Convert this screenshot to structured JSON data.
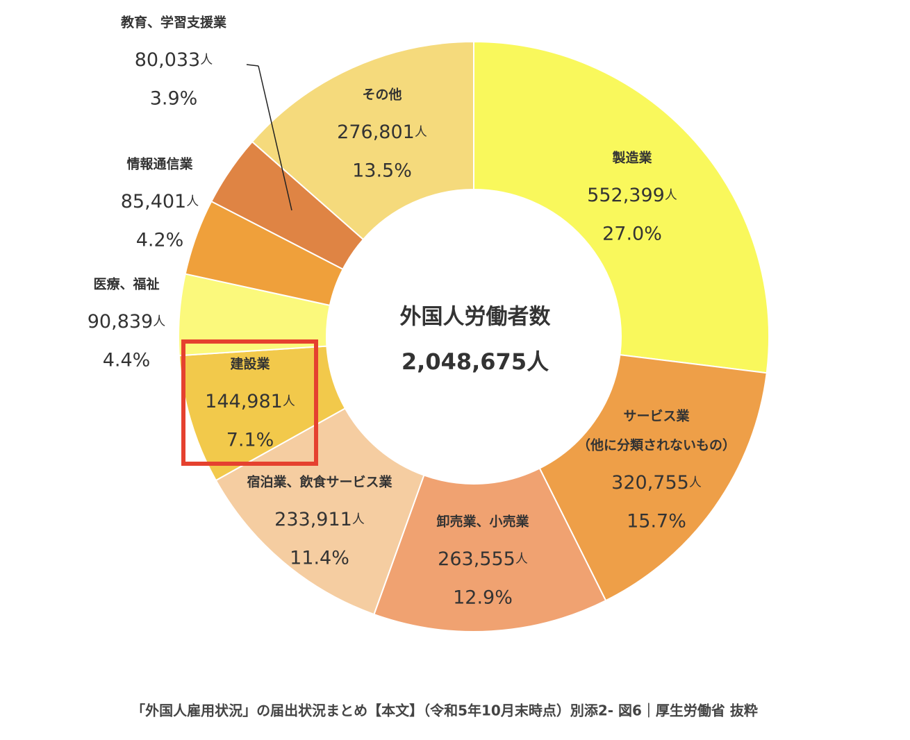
{
  "chart_data": {
    "type": "donut",
    "categories": [
      [
        "製造業"
      ],
      [
        "サービス業",
        "（他に分類されないもの）"
      ],
      [
        "卸売業、小売業"
      ],
      [
        "宿泊業、飲食サービス業"
      ],
      [
        "建設業"
      ],
      [
        "医療、福祉"
      ],
      [
        "情報通信業"
      ],
      [
        "教育、学習支援業"
      ],
      [
        "その他"
      ]
    ],
    "values": [
      552399,
      320755,
      263555,
      233911,
      144981,
      90839,
      85401,
      80033,
      276801
    ],
    "value_labels": [
      "552,399",
      "320,755",
      "263,555",
      "233,911",
      "144,981",
      "90,839",
      "85,401",
      "80,033",
      "276,801"
    ],
    "unit": "人",
    "percent_labels": [
      "27.0%",
      "15.7%",
      "12.9%",
      "11.4%",
      "7.1%",
      "4.4%",
      "4.2%",
      "3.9%",
      "13.5%"
    ],
    "colors": [
      "#f9f85c",
      "#ee9f48",
      "#f0a271",
      "#f5cda1",
      "#f2c94b",
      "#fbf97c",
      "#efa03b",
      "#df8444",
      "#f5da7c"
    ],
    "center_title": "外国人労働者数",
    "total": 2048675,
    "total_label": "2,048,675",
    "caption": "「外国人雇用状況」の届出状況まとめ【本文】（令和5年10月末時点）別添2- 図6｜厚生労働省 抜粋"
  }
}
